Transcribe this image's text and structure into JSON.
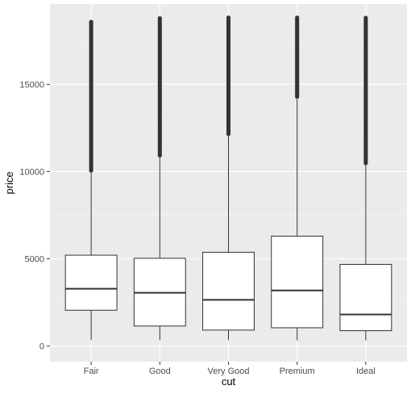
{
  "chart_data": {
    "type": "boxplot",
    "xlabel": "cut",
    "ylabel": "price",
    "categories": [
      "Fair",
      "Good",
      "Very Good",
      "Premium",
      "Ideal"
    ],
    "ylim": [
      -900,
      19600
    ],
    "y_ticks": [
      0,
      5000,
      10000,
      15000
    ],
    "y_tick_labels": [
      "0",
      "5000",
      "10000",
      "15000"
    ],
    "grid": true,
    "legend": "none",
    "boxes": [
      {
        "name": "Fair",
        "min": 337,
        "q1": 2050,
        "median": 3282,
        "q3": 5206,
        "whisker_high": 9950,
        "outlier_min": 10000,
        "outlier_max": 18574
      },
      {
        "name": "Good",
        "min": 327,
        "q1": 1145,
        "median": 3050,
        "q3": 5028,
        "whisker_high": 10850,
        "outlier_min": 10900,
        "outlier_max": 18788
      },
      {
        "name": "Very Good",
        "min": 336,
        "q1": 912,
        "median": 2648,
        "q3": 5373,
        "whisker_high": 12050,
        "outlier_min": 12100,
        "outlier_max": 18818
      },
      {
        "name": "Premium",
        "min": 326,
        "q1": 1046,
        "median": 3185,
        "q3": 6296,
        "whisker_high": 14150,
        "outlier_min": 14200,
        "outlier_max": 18823
      },
      {
        "name": "Ideal",
        "min": 326,
        "q1": 878,
        "median": 1810,
        "q3": 4678,
        "whisker_high": 10350,
        "outlier_min": 10400,
        "outlier_max": 18806
      }
    ],
    "colors": {
      "panel_background": "#ebebeb",
      "grid_major": "#ffffff",
      "grid_minor": "#f5f5f5",
      "box_fill": "#ffffff",
      "box_stroke": "#333333",
      "outlier": "#333333",
      "tick_label": "#4d4d4d",
      "axis_title": "#000000"
    }
  }
}
